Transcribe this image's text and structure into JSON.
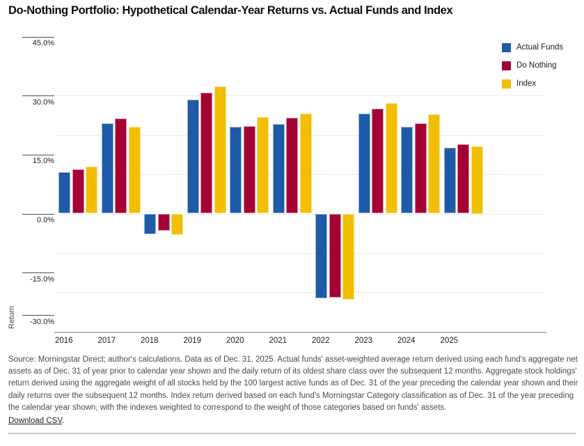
{
  "title": "Do-Nothing Portfolio: Hypothetical Calendar-Year Returns vs. Actual Funds and Index",
  "legend": {
    "items": [
      {
        "label": "Actual Funds",
        "color": "#1E5AA8"
      },
      {
        "label": "Do Nothing",
        "color": "#A50034"
      },
      {
        "label": "Index",
        "color": "#F2BE00"
      }
    ]
  },
  "y_axis": {
    "label": "Return",
    "ticks": [
      {
        "label": "45.0%",
        "value": 45
      },
      {
        "label": "30.0%",
        "value": 30
      },
      {
        "label": "15.0%",
        "value": 15
      },
      {
        "label": "0.0%",
        "value": 0
      },
      {
        "label": "-15.0%",
        "value": -15
      },
      {
        "label": "-30.0%",
        "value": -30
      }
    ]
  },
  "chart_data": {
    "type": "bar",
    "title": "Do-Nothing Portfolio: Hypothetical Calendar-Year Returns vs. Actual Funds and Index",
    "categories": [
      "2016",
      "2017",
      "2018",
      "2019",
      "2020",
      "2021",
      "2022",
      "2023",
      "2024",
      "2025"
    ],
    "series": [
      {
        "name": "Actual Funds",
        "color": "#1E5AA8",
        "values": [
          10.5,
          23.0,
          -5.2,
          28.9,
          22.1,
          22.7,
          -21.6,
          25.4,
          22.1,
          16.7
        ]
      },
      {
        "name": "Do Nothing",
        "color": "#A50034",
        "values": [
          11.2,
          24.2,
          -4.3,
          30.8,
          22.2,
          24.3,
          -21.3,
          26.7,
          23.0,
          17.7
        ]
      },
      {
        "name": "Index",
        "color": "#F2BE00",
        "values": [
          11.9,
          22.0,
          -5.4,
          32.3,
          24.6,
          25.4,
          -21.9,
          28.0,
          25.2,
          17.1
        ]
      }
    ],
    "xlabel": "",
    "ylabel": "Return",
    "ylim": [
      -30,
      45
    ],
    "gridlines_pct": [
      30,
      20,
      10,
      0,
      -10,
      -20
    ],
    "grid": "dotted horizontal",
    "legend_position": "top-right"
  },
  "footer": {
    "source_text": "Source: Morningstar Direct; author's calculations. Data as of Dec. 31, 2025. Actual funds' asset-weighted average return derived using each fund's aggregate net assets as of Dec. 31 of year prior to calendar year shown and the daily return of its oldest share class over the subsequent 12 months. Aggregate stock holdings' return derived using the aggregate weight of all stocks held by the 100 largest active funds as of Dec. 31 of the year preceding the calendar year shown and their daily returns over the subsequent 12 months. Index return derived based on each fund's Morningstar Category classification as of Dec. 31 of the year preceding the calendar year shown, with the indexes weighted to correspond to the weight of those categories based on funds' assets.",
    "download_label": "Download CSV",
    "download_suffix": "."
  }
}
